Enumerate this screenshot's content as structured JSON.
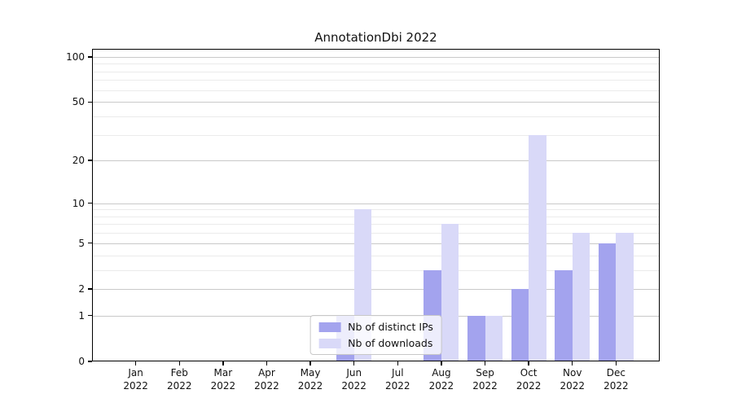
{
  "chart_data": {
    "type": "bar",
    "title": "AnnotationDbi 2022",
    "categories": [
      "Jan",
      "Feb",
      "Mar",
      "Apr",
      "May",
      "Jun",
      "Jul",
      "Aug",
      "Sep",
      "Oct",
      "Nov",
      "Dec"
    ],
    "year": "2022",
    "series": [
      {
        "name": "Nb of distinct IPs",
        "color": "#a3a3ee",
        "values": [
          0,
          0,
          0,
          0,
          0,
          1,
          0,
          3,
          1,
          2,
          3,
          5
        ]
      },
      {
        "name": "Nb of downloads",
        "color": "#d9d9f8",
        "values": [
          0,
          0,
          0,
          0,
          0,
          9,
          0,
          7,
          1,
          30,
          6,
          6
        ]
      }
    ],
    "yscale": "log1p",
    "yticks_major": [
      0,
      1,
      2,
      5,
      10,
      20,
      50,
      100
    ],
    "yticks_minor": [
      3,
      4,
      6,
      7,
      8,
      9,
      30,
      40,
      60,
      70,
      80,
      90
    ],
    "ylim": [
      0,
      113
    ],
    "xlabel": "",
    "ylabel": "",
    "grid": "on",
    "legend_position": "lower-center"
  }
}
